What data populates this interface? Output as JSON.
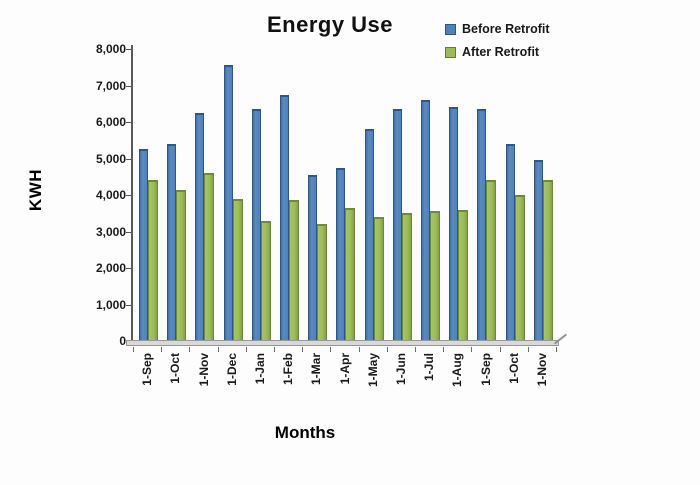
{
  "chart_data": {
    "type": "bar",
    "title": "Energy Use",
    "xlabel": "Months",
    "ylabel": "KWH",
    "categories": [
      "1-Sep",
      "1-Oct",
      "1-Nov",
      "1-Dec",
      "1-Jan",
      "1-Feb",
      "1-Mar",
      "1-Apr",
      "1-May",
      "1-Jun",
      "1-Jul",
      "1-Aug",
      "1-Sep",
      "1-Oct",
      "1-Nov"
    ],
    "series": [
      {
        "name": "Before Retrofit",
        "color": "#4f81bd",
        "edge_color": "#2e5783",
        "values": [
          5250,
          5400,
          6250,
          7550,
          6350,
          6750,
          4550,
          4750,
          5800,
          6350,
          6600,
          6400,
          6350,
          5400,
          4950
        ]
      },
      {
        "name": "After Retrofit",
        "color": "#9bbb59",
        "edge_color": "#6d8a3c",
        "values": [
          4400,
          4150,
          4600,
          3900,
          3300,
          3850,
          3200,
          3650,
          3400,
          3500,
          3550,
          3600,
          4400,
          4000,
          4400
        ]
      }
    ],
    "ylim": [
      0,
      8000
    ],
    "y_tick_step": 1000,
    "y_tick_labels": [
      "0",
      "1,000",
      "2,000",
      "3,000",
      "4,000",
      "5,000",
      "6,000",
      "7,000",
      "8,000"
    ],
    "grid": false,
    "legend_position": "top-right",
    "style": "excel-3d-clustered"
  }
}
